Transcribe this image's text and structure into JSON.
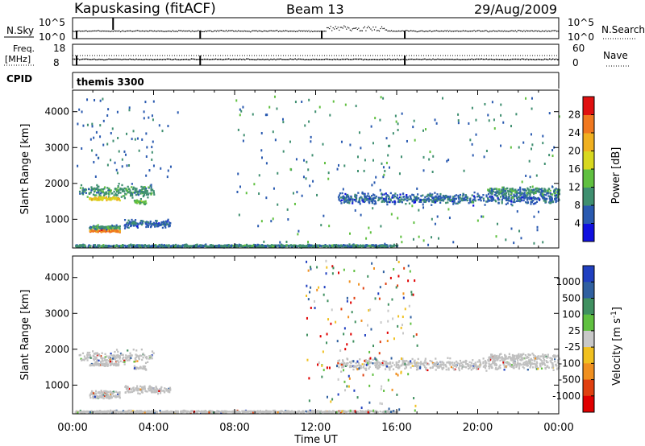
{
  "header": {
    "station": "Kapuskasing (fitACF)",
    "beam": "Beam 13",
    "date": "29/Aug/2009"
  },
  "top_panels": {
    "nsky_label": "N.Sky",
    "nsky_ticks": [
      "10^5",
      "10^0"
    ],
    "nsearch_label": "N.Search",
    "nsearch_ticks": [
      "10^5",
      "10^0"
    ],
    "freq_label_1": "Freq.",
    "freq_label_2": "[MHz]",
    "freq_ticks": [
      "18",
      "8"
    ],
    "nave_label": "Nave",
    "nave_ticks": [
      "60",
      "0"
    ],
    "cpid_label": "CPID",
    "cpid_value": "themis 3300"
  },
  "colors": {
    "power_scale": [
      "#1010e0",
      "#2a5ab0",
      "#3f8f70",
      "#60c040",
      "#d8d820",
      "#f0b020",
      "#f07820",
      "#e01010"
    ],
    "velocity_scale": [
      "#2040c0",
      "#3060a0",
      "#409060",
      "#60c040",
      "#c8c8c8",
      "#f0c020",
      "#f09020",
      "#e04010",
      "#e00000"
    ],
    "ground_scatter": "#c0c0c0"
  },
  "chart_data": [
    {
      "type": "heatmap",
      "name": "power",
      "ylabel": "Slant Range [km]",
      "xlabel": "",
      "x_ticks": [
        "00:00",
        "04:00",
        "08:00",
        "12:00",
        "16:00",
        "20:00",
        "00:00"
      ],
      "y_ticks": [
        "1000",
        "2000",
        "3000",
        "4000"
      ],
      "ylim": [
        200,
        4600
      ],
      "colorbar_label": "Power [dB]",
      "colorbar_ticks": [
        "28",
        "24",
        "20",
        "16",
        "12",
        "8",
        "4"
      ],
      "colorbar_range": [
        0,
        32
      ],
      "bands": [
        {
          "from_hr": 0.3,
          "to_hr": 4.0,
          "center_km": 1800,
          "spread_km": 250,
          "value": 10
        },
        {
          "from_hr": 0.8,
          "to_hr": 2.3,
          "center_km": 1600,
          "spread_km": 60,
          "value": 20
        },
        {
          "from_hr": 3.0,
          "to_hr": 3.6,
          "center_km": 1500,
          "spread_km": 80,
          "value": 14
        },
        {
          "from_hr": 0.8,
          "to_hr": 2.3,
          "center_km": 700,
          "spread_km": 60,
          "value": 26
        },
        {
          "from_hr": 0.8,
          "to_hr": 2.3,
          "center_km": 800,
          "spread_km": 80,
          "value": 10
        },
        {
          "from_hr": 2.5,
          "to_hr": 4.8,
          "center_km": 900,
          "spread_km": 150,
          "value": 7
        },
        {
          "from_hr": 0.1,
          "to_hr": 16.0,
          "center_km": 280,
          "spread_km": 50,
          "value": 9
        },
        {
          "from_hr": 13.0,
          "to_hr": 24.0,
          "center_km": 1600,
          "spread_km": 220,
          "value": 7
        },
        {
          "from_hr": 20.5,
          "to_hr": 24.0,
          "center_km": 1800,
          "spread_km": 150,
          "value": 10
        }
      ]
    },
    {
      "type": "heatmap",
      "name": "velocity",
      "ylabel": "Slant Range [km]",
      "xlabel": "Time UT",
      "x_ticks": [
        "00:00",
        "04:00",
        "08:00",
        "12:00",
        "16:00",
        "20:00",
        "00:00"
      ],
      "y_ticks": [
        "1000",
        "2000",
        "3000",
        "4000"
      ],
      "ylim": [
        200,
        4600
      ],
      "colorbar_label": "Velocity [m s",
      "colorbar_label_sup": "-1",
      "colorbar_label_end": "]",
      "colorbar_ticks": [
        "1000",
        "500",
        "100",
        "25",
        "-25",
        "-100",
        "-500",
        "-1000"
      ],
      "scatter_note": "mostly ground scatter (grey) with sparse ionospheric echoes between 11:30 and 17:00 UT"
    }
  ]
}
